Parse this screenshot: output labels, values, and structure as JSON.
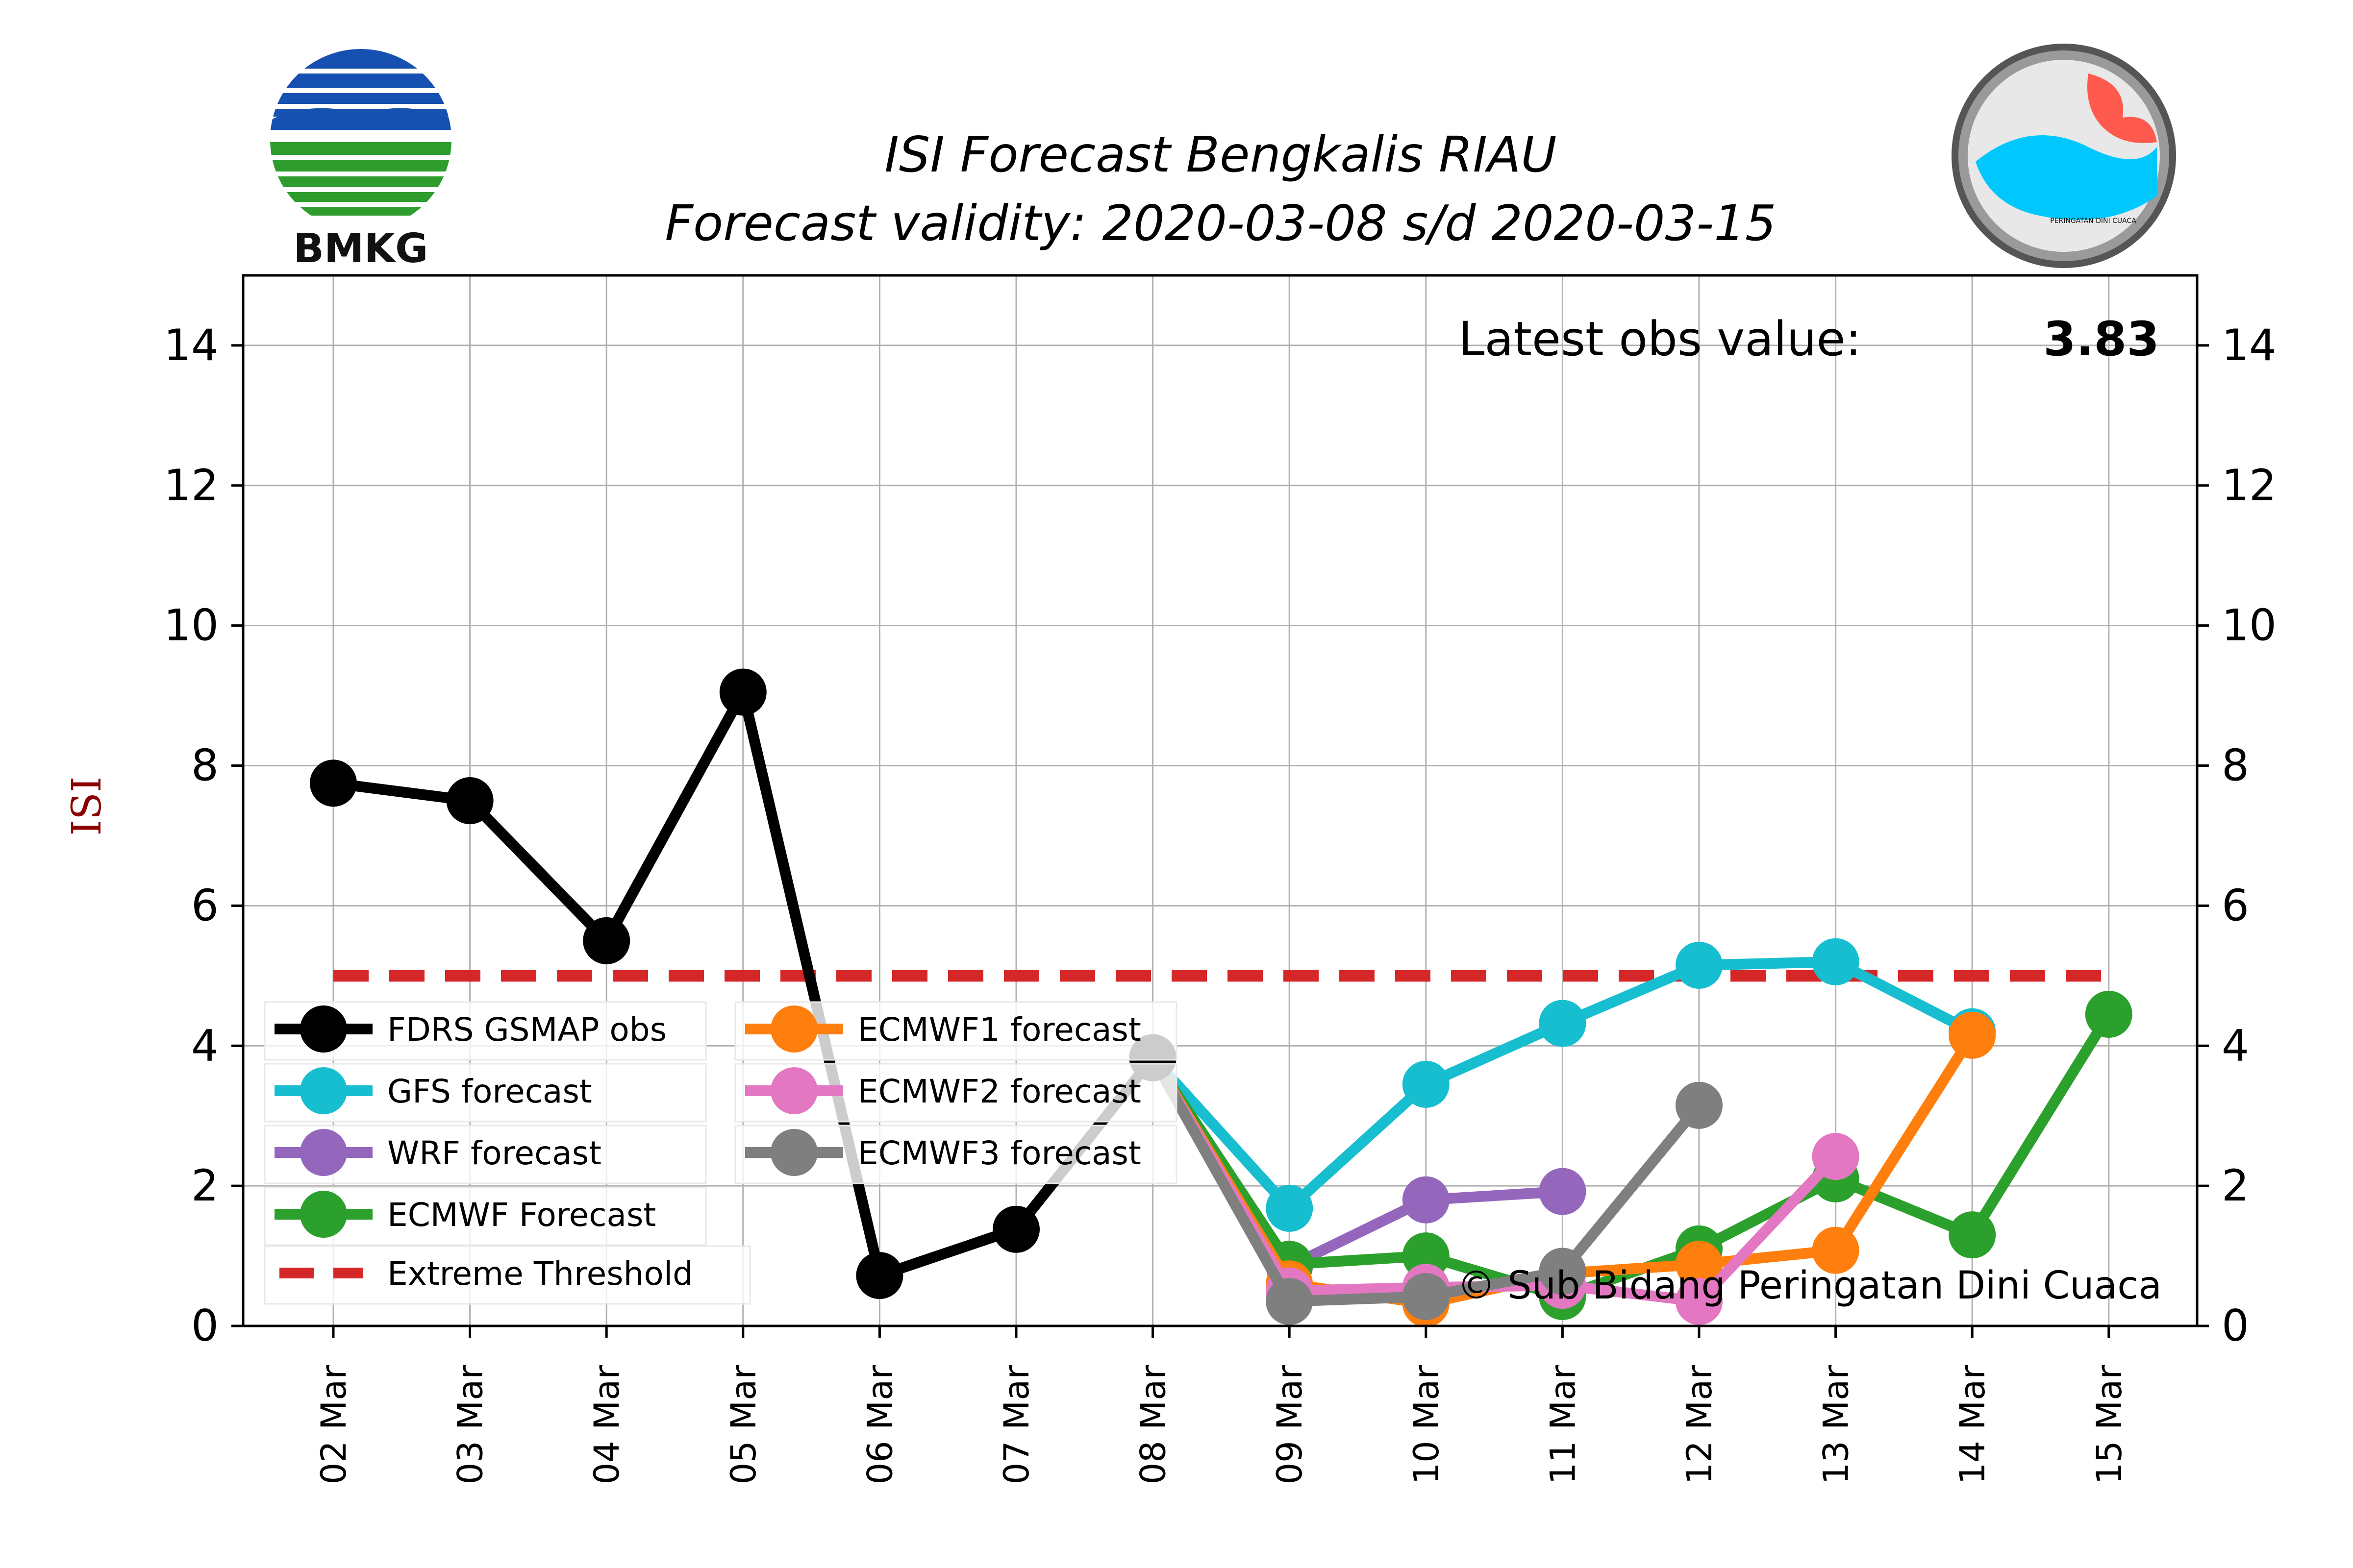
{
  "header": {
    "title_line1": "ISI Forecast Bengkalis RIAU",
    "title_line2": "Forecast validity: 2020-03-08 s/d 2020-03-15"
  },
  "logos": {
    "left": {
      "text": "BMKG",
      "icon": "bmkg-logo",
      "colors": [
        "#1565c0",
        "#2e9d2e"
      ]
    },
    "right": {
      "text": "PERINGATAN DINI CUACA",
      "icon": "pdc-logo",
      "colors": [
        "#00c8ff",
        "#ff5a4e",
        "#222222"
      ]
    }
  },
  "annotations": {
    "latest_obs_label": "Latest obs value:",
    "latest_obs_value": "3.83",
    "credit": "© Sub Bidang Peringatan Dini Cuaca"
  },
  "chart_data": {
    "type": "line",
    "title": "ISI Forecast Bengkalis RIAU\nForecast validity: 2020-03-08 s/d 2020-03-15",
    "ylabel": "ISI",
    "xlabel": "",
    "categories": [
      "02 Mar",
      "03 Mar",
      "04 Mar",
      "05 Mar",
      "06 Mar",
      "07 Mar",
      "08 Mar",
      "09 Mar",
      "10 Mar",
      "11 Mar",
      "12 Mar",
      "13 Mar",
      "14 Mar",
      "15 Mar"
    ],
    "ylim": [
      0,
      15
    ],
    "yticks": [
      0,
      2,
      4,
      6,
      8,
      10,
      12,
      14
    ],
    "grid": true,
    "legend_position": "lower-left",
    "threshold": {
      "name": "Extreme Threshold",
      "value": 5,
      "from": "02 Mar",
      "to": "15 Mar",
      "color": "#d62728"
    },
    "series": [
      {
        "name": "FDRS GSMAP obs",
        "color": "#000000",
        "x": [
          "02 Mar",
          "03 Mar",
          "04 Mar",
          "05 Mar",
          "06 Mar",
          "07 Mar",
          "08 Mar"
        ],
        "values": [
          7.75,
          7.5,
          5.5,
          9.05,
          0.72,
          1.38,
          3.83
        ]
      },
      {
        "name": "GFS forecast",
        "color": "#17becf",
        "x": [
          "08 Mar",
          "09 Mar",
          "10 Mar",
          "11 Mar",
          "12 Mar",
          "13 Mar",
          "14 Mar"
        ],
        "values": [
          3.83,
          1.68,
          3.45,
          4.32,
          5.15,
          5.2,
          4.2
        ]
      },
      {
        "name": "WRF forecast",
        "color": "#9467bd",
        "x": [
          "08 Mar",
          "09 Mar",
          "10 Mar",
          "11 Mar"
        ],
        "values": [
          3.83,
          0.85,
          1.8,
          1.92
        ]
      },
      {
        "name": "ECMWF Forecast",
        "color": "#2ca02c",
        "x": [
          "08 Mar",
          "09 Mar",
          "10 Mar",
          "11 Mar",
          "12 Mar",
          "13 Mar",
          "14 Mar",
          "15 Mar"
        ],
        "values": [
          3.83,
          0.88,
          1.0,
          0.42,
          1.1,
          2.1,
          1.3,
          4.45
        ]
      },
      {
        "name": "ECMWF1 forecast",
        "color": "#ff7f0e",
        "x": [
          "08 Mar",
          "09 Mar",
          "10 Mar",
          "11 Mar",
          "12 Mar",
          "13 Mar",
          "14 Mar"
        ],
        "values": [
          3.83,
          0.6,
          0.32,
          0.75,
          0.88,
          1.08,
          4.15
        ]
      },
      {
        "name": "ECMWF2 forecast",
        "color": "#e377c2",
        "x": [
          "08 Mar",
          "09 Mar",
          "10 Mar",
          "11 Mar",
          "12 Mar",
          "13 Mar"
        ],
        "values": [
          3.83,
          0.5,
          0.55,
          0.58,
          0.35,
          2.42
        ]
      },
      {
        "name": "ECMWF3 forecast",
        "color": "#7f7f7f",
        "x": [
          "08 Mar",
          "09 Mar",
          "10 Mar",
          "11 Mar",
          "12 Mar"
        ],
        "values": [
          3.83,
          0.35,
          0.42,
          0.78,
          3.15
        ]
      }
    ]
  }
}
